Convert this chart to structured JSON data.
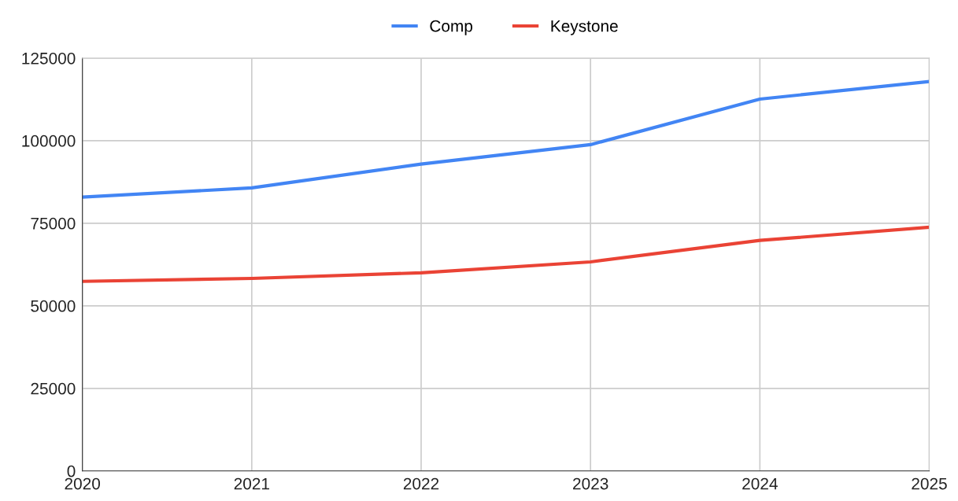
{
  "chart_data": {
    "type": "line",
    "x": [
      2020,
      2021,
      2022,
      2023,
      2024,
      2025
    ],
    "series": [
      {
        "name": "Comp",
        "color": "#4285f4",
        "values": [
          82900,
          85700,
          92900,
          98800,
          112600,
          117900
        ]
      },
      {
        "name": "Keystone",
        "color": "#ea4335",
        "values": [
          57400,
          58300,
          60000,
          63300,
          69800,
          73800
        ]
      }
    ],
    "xlim": [
      2020,
      2025
    ],
    "xticks": [
      2020,
      2021,
      2022,
      2023,
      2024,
      2025
    ],
    "ylim": [
      0,
      125000
    ],
    "yticks": [
      0,
      25000,
      50000,
      75000,
      100000,
      125000
    ],
    "grid": true,
    "legend": "top",
    "marker": "none",
    "line_style": "solid"
  }
}
